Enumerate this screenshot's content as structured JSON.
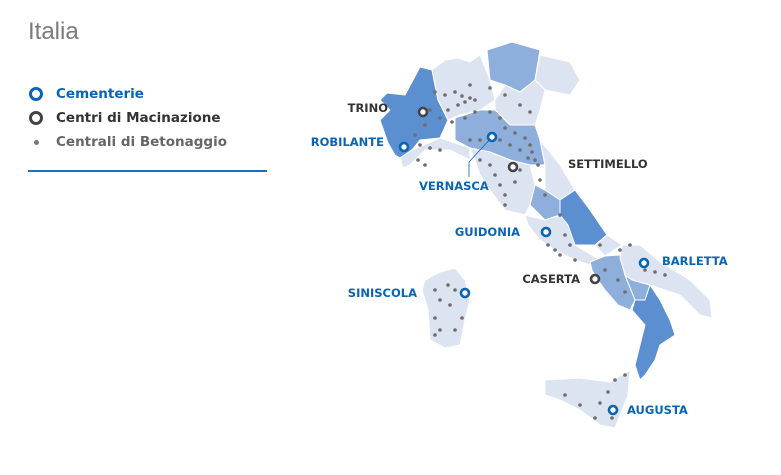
{
  "title": "Italia",
  "legend": {
    "items": [
      {
        "label": "Cementerie",
        "icon": "blue-ring-icon",
        "color": "#0a64b4"
      },
      {
        "label": "Centri di Macinazione",
        "icon": "dark-ring-icon",
        "color": "#444444"
      },
      {
        "label": "Centrali di Betonaggio",
        "icon": "grey-dot-icon",
        "color": "#777777"
      }
    ]
  },
  "colors": {
    "region_light": "#dde4f1",
    "region_mid": "#8eaedb",
    "region_dark": "#5b8fd0",
    "cementerie": "#0a64b4",
    "macinazione": "#444444",
    "betonaggio": "#6e6e6e"
  },
  "sites": [
    {
      "name": "TRINO",
      "type": "macinazione"
    },
    {
      "name": "ROBILANTE",
      "type": "cementerie"
    },
    {
      "name": "VERNASCA",
      "type": "cementerie"
    },
    {
      "name": "SETTIMELLO",
      "type": "macinazione"
    },
    {
      "name": "GUIDONIA",
      "type": "cementerie"
    },
    {
      "name": "CASERTA",
      "type": "macinazione"
    },
    {
      "name": "BARLETTA",
      "type": "cementerie"
    },
    {
      "name": "SINISCOLA",
      "type": "cementerie"
    },
    {
      "name": "AUGUSTA",
      "type": "cementerie"
    }
  ]
}
